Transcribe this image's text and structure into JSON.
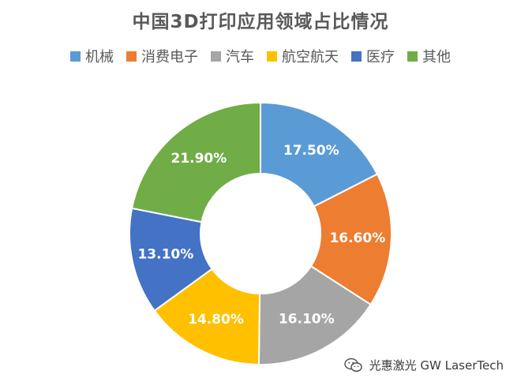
{
  "chart_data": {
    "type": "pie",
    "title": "中国3D打印应用领域占比情况",
    "legend_position": "top",
    "donut": true,
    "categories": [
      "机械",
      "消费电子",
      "汽车",
      "航空航天",
      "医疗",
      "其他"
    ],
    "values": [
      17.5,
      16.6,
      16.1,
      14.8,
      13.1,
      21.9
    ],
    "data_labels": [
      "17.50%",
      "16.60%",
      "16.10%",
      "14.80%",
      "13.10%",
      "21.90%"
    ],
    "colors": [
      "#5B9BD5",
      "#ED7D31",
      "#A5A5A5",
      "#FFC000",
      "#4472C4",
      "#70AD47"
    ]
  },
  "watermark": {
    "text": "光惠激光 GW LaserTech",
    "icon": "wechat-icon"
  }
}
